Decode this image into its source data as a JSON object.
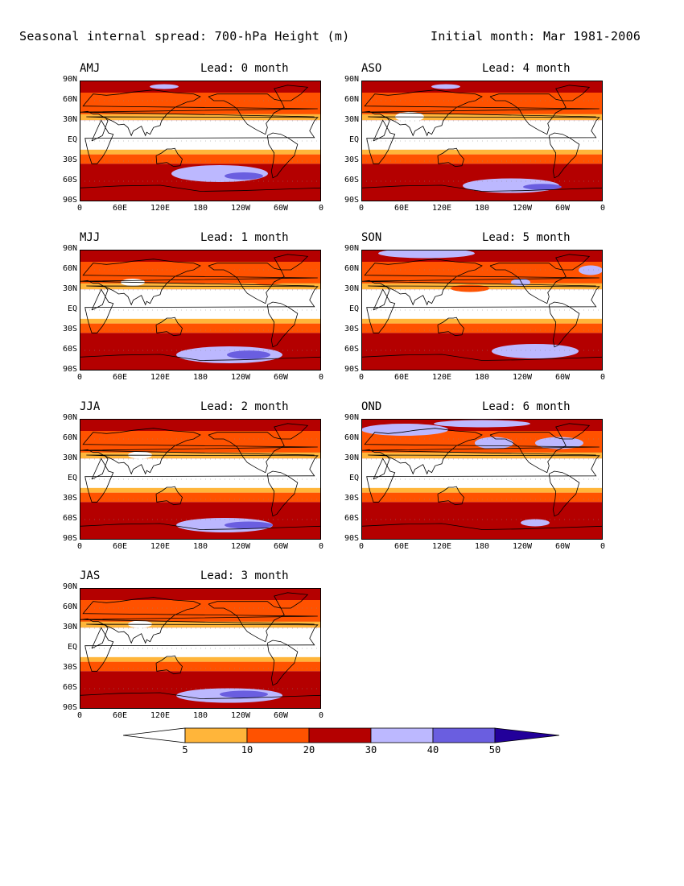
{
  "header": {
    "title": "Seasonal internal spread: 700-hPa Height (m)",
    "initial": "Initial month: Mar 1981-2006"
  },
  "lat_ticks": [
    "90N",
    "60N",
    "30N",
    "EQ",
    "30S",
    "60S",
    "90S"
  ],
  "lon_ticks": [
    "0",
    "60E",
    "120E",
    "180",
    "120W",
    "60W",
    "0"
  ],
  "panels": [
    {
      "season": "AMJ",
      "lead": "Lead: 0 month"
    },
    {
      "season": "ASO",
      "lead": "Lead: 4 month"
    },
    {
      "season": "MJJ",
      "lead": "Lead: 1 month"
    },
    {
      "season": "SON",
      "lead": "Lead: 5 month"
    },
    {
      "season": "JJA",
      "lead": "Lead: 2 month"
    },
    {
      "season": "OND",
      "lead": "Lead: 6 month"
    },
    {
      "season": "JAS",
      "lead": "Lead: 3 month"
    }
  ],
  "colorbar": {
    "levels": [
      "5",
      "10",
      "20",
      "30",
      "40",
      "50"
    ],
    "colors": [
      "#ffffff",
      "#ffb53a",
      "#ff5200",
      "#b40000",
      "#bcb8ff",
      "#6a5ee0",
      "#22009a"
    ]
  },
  "palette": {
    "band_lt5": "#ffffff",
    "band_5_10": "#ffb53a",
    "band_10_20": "#ff5200",
    "band_20_30": "#b40000",
    "band_30_40": "#bcb8ff",
    "band_40_50": "#6a5ee0",
    "band_gt50": "#22009a"
  }
}
